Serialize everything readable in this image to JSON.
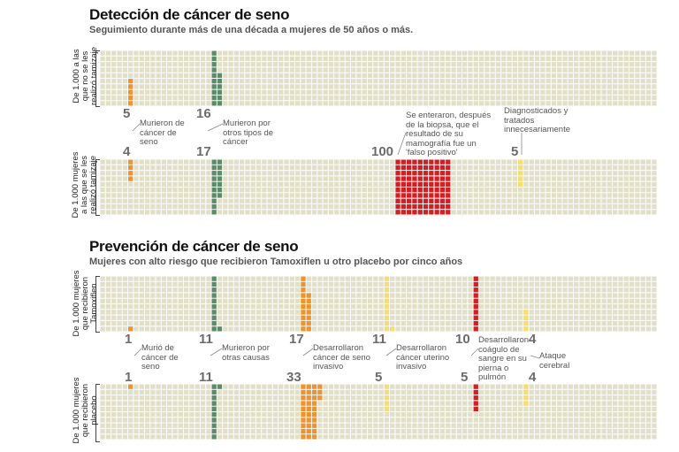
{
  "colors": {
    "grid_bg": "#e2dfc9",
    "grid_line": "#ffffff",
    "orange": "#f0932b",
    "green": "#5c8a6a",
    "red": "#d11f26",
    "yellow": "#f7dc6f",
    "count_text": "#6b6b6b"
  },
  "section1": {
    "title": "Detección de cáncer de seno",
    "subtitle": "Seguimiento durante más de una década a mujeres de 50 años o más.",
    "row_top_label": "De 1.000 a las que no se les realizó tamizaje",
    "row_bottom_label": "De 1.000 mujeres a las que se les realizó tamizaje"
  },
  "section2": {
    "title": "Prevención de cáncer de seno",
    "subtitle": "Mujeres con alto riesgo que recibieron Tamoxiflen u otro placebo por cinco años",
    "row_top_label": "De 1.000 mujeres que recibieron Tamoxiflen",
    "row_bottom_label": "De 1.000 mujeres que recibieron placebo"
  },
  "chart_data": [
    {
      "type": "pictogram",
      "title": "Detección de cáncer de seno",
      "subtitle": "Seguimiento durante más de una década a mujeres de 50 años o más.",
      "total_per_group": 1000,
      "groups": [
        "De 1.000 a las que no se les realizó tamizaje",
        "De 1.000 mujeres a las que se les realizó tamizaje"
      ],
      "categories": [
        {
          "label": "Murieron de cáncer de seno",
          "color": "orange",
          "values": [
            5,
            4
          ]
        },
        {
          "label": "Murieron por otros tipos de cáncer",
          "color": "green",
          "values": [
            16,
            17
          ]
        },
        {
          "label": "Se enteraron, después de la biopsa, que el resultado de su mamografía fue un 'falso positivo'",
          "color": "red",
          "values": [
            0,
            100
          ]
        },
        {
          "label": "Diagnosticados y tratados innecesariamente",
          "color": "yellow",
          "values": [
            0,
            5
          ]
        }
      ]
    },
    {
      "type": "pictogram",
      "title": "Prevención de cáncer de seno",
      "subtitle": "Mujeres con alto riesgo que recibieron Tamoxiflen u otro placebo por cinco años",
      "total_per_group": 1000,
      "groups": [
        "De 1.000 mujeres que recibieron Tamoxiflen",
        "De 1.000 mujeres que recibieron placebo"
      ],
      "categories": [
        {
          "label": "Murió de cáncer de seno",
          "color": "orange",
          "values": [
            1,
            1
          ]
        },
        {
          "label": "Murieron por otras causas",
          "color": "green",
          "values": [
            11,
            11
          ]
        },
        {
          "label": "Desarrollaron cáncer de seno invasivo",
          "color": "orange",
          "values": [
            17,
            33
          ]
        },
        {
          "label": "Desarrollaron cáncer uterino invasivo",
          "color": "yellow",
          "values": [
            11,
            5
          ]
        },
        {
          "label": "Desarrollaron coágulo de sangre en su pierna o pulmón",
          "color": "red",
          "values": [
            10,
            5
          ]
        },
        {
          "label": "Ataque cerebral",
          "color": "yellow",
          "values": [
            4,
            4
          ]
        }
      ]
    }
  ]
}
